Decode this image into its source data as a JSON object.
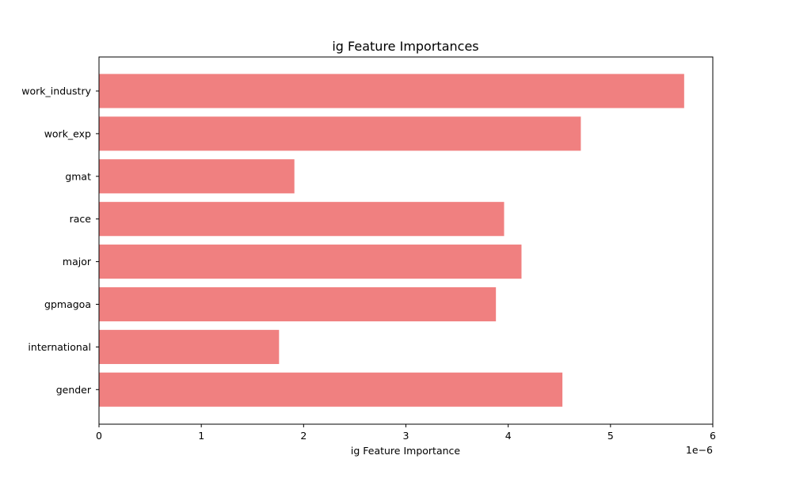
{
  "chart_data": {
    "type": "bar",
    "orientation": "horizontal",
    "title": "ig Feature Importances",
    "xlabel": "ig Feature Importance",
    "ylabel": "",
    "x_offset_label": "1e−6",
    "x_scale": 1e-06,
    "xlim": [
      0,
      6
    ],
    "xticks": [
      "0",
      "1",
      "2",
      "3",
      "4",
      "5",
      "6"
    ],
    "grid": false,
    "bar_color": "#f08080",
    "categories": [
      "work_industry",
      "work_exp",
      "gmat",
      "race",
      "major",
      "gpmagoa",
      "international",
      "gender"
    ],
    "values": [
      5.72,
      4.71,
      1.91,
      3.96,
      4.13,
      3.88,
      1.76,
      4.53
    ]
  }
}
